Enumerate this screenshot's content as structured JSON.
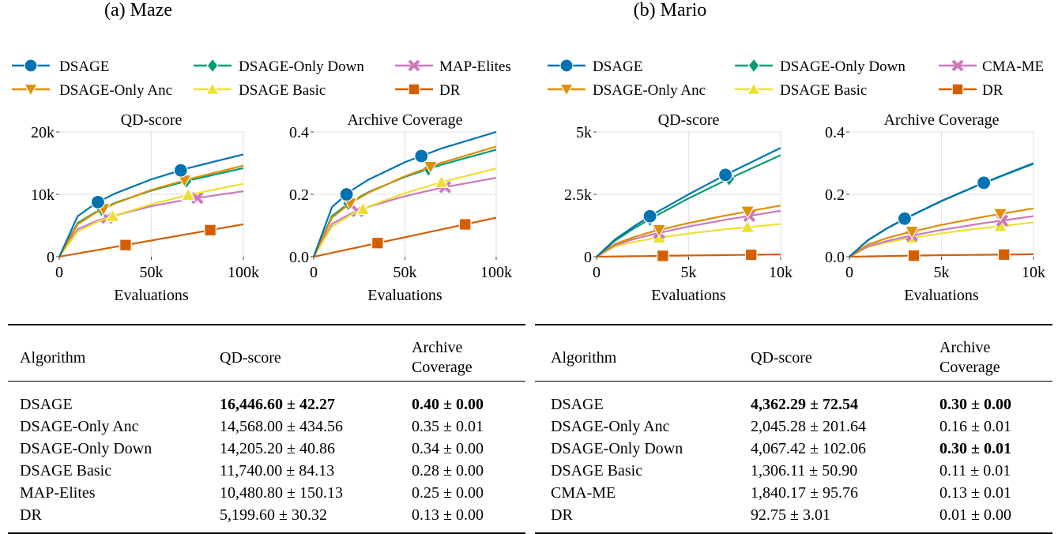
{
  "panels": [
    {
      "title": "(a) Maze",
      "legend": [
        {
          "name": "DSAGE",
          "color": "#0173b2",
          "marker": "circle"
        },
        {
          "name": "DSAGE-Only Down",
          "color": "#029e73",
          "marker": "diamond"
        },
        {
          "name": "MAP-Elites",
          "color": "#cc78bc",
          "marker": "x"
        },
        {
          "name": "DSAGE-Only Anc",
          "color": "#de8f05",
          "marker": "triangle-down"
        },
        {
          "name": "DSAGE Basic",
          "color": "#ece133",
          "marker": "triangle-up"
        },
        {
          "name": "DR",
          "color": "#d55e00",
          "marker": "square"
        }
      ],
      "table": {
        "headers": [
          "Algorithm",
          "QD-score",
          "Archive",
          "Coverage"
        ],
        "rows": [
          {
            "algorithm": "DSAGE",
            "qd": "16,446.60 ± 42.27",
            "qd_bold": true,
            "cov": "0.40 ± 0.00",
            "cov_bold": true
          },
          {
            "algorithm": "DSAGE-Only Anc",
            "qd": "14,568.00 ± 434.56",
            "qd_bold": false,
            "cov": "0.35 ± 0.01",
            "cov_bold": false
          },
          {
            "algorithm": "DSAGE-Only Down",
            "qd": "14,205.20 ± 40.86",
            "qd_bold": false,
            "cov": "0.34 ± 0.00",
            "cov_bold": false
          },
          {
            "algorithm": "DSAGE Basic",
            "qd": "11,740.00 ± 84.13",
            "qd_bold": false,
            "cov": "0.28 ± 0.00",
            "cov_bold": false
          },
          {
            "algorithm": "MAP-Elites",
            "qd": "10,480.80 ± 150.13",
            "qd_bold": false,
            "cov": "0.25 ± 0.00",
            "cov_bold": false
          },
          {
            "algorithm": "DR",
            "qd": "5,199.60 ± 30.32",
            "qd_bold": false,
            "cov": "0.13 ± 0.00",
            "cov_bold": false
          }
        ]
      }
    },
    {
      "title": "(b) Mario",
      "legend": [
        {
          "name": "DSAGE",
          "color": "#0173b2",
          "marker": "circle"
        },
        {
          "name": "DSAGE-Only Down",
          "color": "#029e73",
          "marker": "diamond"
        },
        {
          "name": "CMA-ME",
          "color": "#cc78bc",
          "marker": "x"
        },
        {
          "name": "DSAGE-Only Anc",
          "color": "#de8f05",
          "marker": "triangle-down"
        },
        {
          "name": "DSAGE Basic",
          "color": "#ece133",
          "marker": "triangle-up"
        },
        {
          "name": "DR",
          "color": "#d55e00",
          "marker": "square"
        }
      ],
      "table": {
        "headers": [
          "Algorithm",
          "QD-score",
          "Archive",
          "Coverage"
        ],
        "rows": [
          {
            "algorithm": "DSAGE",
            "qd": "4,362.29 ± 72.54",
            "qd_bold": true,
            "cov": "0.30 ± 0.00",
            "cov_bold": true
          },
          {
            "algorithm": "DSAGE-Only Anc",
            "qd": "2,045.28 ± 201.64",
            "qd_bold": false,
            "cov": "0.16 ± 0.01",
            "cov_bold": false
          },
          {
            "algorithm": "DSAGE-Only Down",
            "qd": "4,067.42 ± 102.06",
            "qd_bold": false,
            "cov": "0.30 ± 0.01",
            "cov_bold": true
          },
          {
            "algorithm": "DSAGE Basic",
            "qd": "1,306.11 ± 50.90",
            "qd_bold": false,
            "cov": "0.11 ± 0.01",
            "cov_bold": false
          },
          {
            "algorithm": "CMA-ME",
            "qd": "1,840.17 ± 95.76",
            "qd_bold": false,
            "cov": "0.13 ± 0.01",
            "cov_bold": false
          },
          {
            "algorithm": "DR",
            "qd": "92.75 ± 3.01",
            "qd_bold": false,
            "cov": "0.01 ± 0.00",
            "cov_bold": false
          }
        ]
      }
    }
  ],
  "chart_data": [
    {
      "type": "line",
      "title": "QD-score",
      "xlabel": "Evaluations",
      "ylabel": "",
      "xlim": [
        0,
        100000
      ],
      "ylim": [
        0,
        20000
      ],
      "grid": true,
      "xticks": [
        0,
        50000,
        100000
      ],
      "xticklabels": [
        "0",
        "50k",
        "100k"
      ],
      "yticks": [
        0,
        10000,
        20000
      ],
      "yticklabels": [
        "0",
        "10k",
        "20k"
      ],
      "x": [
        0,
        10000,
        20000,
        30000,
        50000,
        70000,
        100000
      ],
      "series": [
        {
          "name": "DSAGE",
          "color": "#0173b2",
          "marker": "circle",
          "values": [
            0,
            6500,
            8600,
            10100,
            12400,
            14200,
            16400
          ],
          "markers_at": [
            21000,
            66000
          ]
        },
        {
          "name": "DSAGE-Only Anc",
          "color": "#de8f05",
          "marker": "triangle-down",
          "values": [
            0,
            5200,
            7100,
            8500,
            10700,
            12400,
            14600
          ],
          "markers_at": [
            24000,
            68000
          ]
        },
        {
          "name": "DSAGE-Only Down",
          "color": "#029e73",
          "marker": "diamond",
          "values": [
            0,
            5400,
            7200,
            8600,
            10600,
            12200,
            14200
          ],
          "markers_at": [
            23000,
            69000
          ]
        },
        {
          "name": "DSAGE Basic",
          "color": "#ece133",
          "marker": "triangle-up",
          "values": [
            0,
            4000,
            5500,
            6600,
            8400,
            9900,
            11700
          ],
          "markers_at": [
            29000,
            70000
          ]
        },
        {
          "name": "MAP-Elites",
          "color": "#cc78bc",
          "marker": "x",
          "values": [
            0,
            4400,
            5700,
            6600,
            8100,
            9200,
            10500
          ],
          "markers_at": [
            26000,
            75000
          ]
        },
        {
          "name": "DR",
          "color": "#d55e00",
          "marker": "square",
          "values": [
            0,
            520,
            1040,
            1560,
            2600,
            3640,
            5200
          ],
          "markers_at": [
            36000,
            82000
          ]
        }
      ]
    },
    {
      "type": "line",
      "title": "Archive Coverage",
      "xlabel": "Evaluations",
      "ylabel": "",
      "xlim": [
        0,
        100000
      ],
      "ylim": [
        0,
        0.4
      ],
      "grid": true,
      "xticks": [
        0,
        50000,
        100000
      ],
      "xticklabels": [
        "0",
        "50k",
        "100k"
      ],
      "yticks": [
        0,
        0.2,
        0.4
      ],
      "yticklabels": [
        "0.0",
        "0.2",
        "0.4"
      ],
      "x": [
        0,
        10000,
        20000,
        30000,
        50000,
        70000,
        100000
      ],
      "series": [
        {
          "name": "DSAGE",
          "color": "#0173b2",
          "marker": "circle",
          "values": [
            0,
            0.159,
            0.21,
            0.247,
            0.303,
            0.347,
            0.4
          ],
          "markers_at": [
            18000,
            59000
          ]
        },
        {
          "name": "DSAGE-Only Anc",
          "color": "#de8f05",
          "marker": "triangle-down",
          "values": [
            0,
            0.125,
            0.171,
            0.205,
            0.258,
            0.301,
            0.353
          ],
          "markers_at": [
            20000,
            64000
          ]
        },
        {
          "name": "DSAGE-Only Down",
          "color": "#029e73",
          "marker": "diamond",
          "values": [
            0,
            0.13,
            0.175,
            0.207,
            0.256,
            0.295,
            0.343
          ],
          "markers_at": [
            19000,
            63000
          ]
        },
        {
          "name": "DSAGE Basic",
          "color": "#ece133",
          "marker": "triangle-up",
          "values": [
            0,
            0.096,
            0.133,
            0.161,
            0.204,
            0.239,
            0.283
          ],
          "markers_at": [
            27000,
            70000
          ]
        },
        {
          "name": "MAP-Elites",
          "color": "#cc78bc",
          "marker": "x",
          "values": [
            0,
            0.105,
            0.137,
            0.16,
            0.194,
            0.221,
            0.253
          ],
          "markers_at": [
            24000,
            72000
          ]
        },
        {
          "name": "DR",
          "color": "#d55e00",
          "marker": "square",
          "values": [
            0,
            0.0125,
            0.025,
            0.0375,
            0.0625,
            0.0875,
            0.125
          ],
          "markers_at": [
            35000,
            83000
          ]
        }
      ]
    },
    {
      "type": "line",
      "title": "QD-score",
      "xlabel": "Evaluations",
      "ylabel": "",
      "xlim": [
        0,
        10000
      ],
      "ylim": [
        0,
        5000
      ],
      "grid": true,
      "xticks": [
        0,
        5000,
        10000
      ],
      "xticklabels": [
        "0",
        "5k",
        "10k"
      ],
      "yticks": [
        0,
        2500,
        5000
      ],
      "yticklabels": [
        "0",
        "2.5k",
        "5k"
      ],
      "x": [
        0,
        1000,
        2000,
        3000,
        5000,
        7000,
        10000
      ],
      "series": [
        {
          "name": "DSAGE",
          "color": "#0173b2",
          "marker": "circle",
          "values": [
            0,
            690,
            1200,
            1670,
            2500,
            3280,
            4360
          ],
          "markers_at": [
            2900,
            7000
          ]
        },
        {
          "name": "DSAGE-Only Down",
          "color": "#029e73",
          "marker": "diamond",
          "values": [
            0,
            640,
            1120,
            1550,
            2340,
            3060,
            4070
          ],
          "markers_at": [
            2900,
            7200
          ]
        },
        {
          "name": "DSAGE-Only Anc",
          "color": "#de8f05",
          "marker": "triangle-down",
          "values": [
            0,
            510,
            780,
            1000,
            1350,
            1650,
            2050
          ],
          "markers_at": [
            3400,
            8200
          ]
        },
        {
          "name": "CMA-ME",
          "color": "#cc78bc",
          "marker": "x",
          "values": [
            0,
            460,
            700,
            890,
            1210,
            1480,
            1840
          ],
          "markers_at": [
            3400,
            8300
          ]
        },
        {
          "name": "DSAGE Basic",
          "color": "#ece133",
          "marker": "triangle-up",
          "values": [
            0,
            410,
            590,
            720,
            930,
            1100,
            1310
          ],
          "markers_at": [
            3400,
            8200
          ]
        },
        {
          "name": "DR",
          "color": "#d55e00",
          "marker": "square",
          "values": [
            0,
            10,
            20,
            30,
            50,
            65,
            93
          ],
          "markers_at": [
            3600,
            8400
          ]
        }
      ]
    },
    {
      "type": "line",
      "title": "Archive Coverage",
      "xlabel": "Evaluations",
      "ylabel": "",
      "xlim": [
        0,
        10000
      ],
      "ylim": [
        0,
        0.4
      ],
      "grid": true,
      "xticks": [
        0,
        5000,
        10000
      ],
      "xticklabels": [
        "0",
        "5k",
        "10k"
      ],
      "yticks": [
        0,
        0.2,
        0.4
      ],
      "yticklabels": [
        "0.0",
        "0.2",
        "0.4"
      ],
      "x": [
        0,
        1000,
        2000,
        3000,
        5000,
        7000,
        10000
      ],
      "series": [
        {
          "name": "DSAGE",
          "color": "#0173b2",
          "marker": "circle",
          "values": [
            0,
            0.053,
            0.09,
            0.122,
            0.179,
            0.23,
            0.3
          ],
          "markers_at": [
            3000,
            7300
          ]
        },
        {
          "name": "DSAGE-Only Down",
          "color": "#029e73",
          "marker": "diamond",
          "values": [
            0,
            0.052,
            0.089,
            0.121,
            0.178,
            0.229,
            0.298
          ],
          "markers_at": [
            3000,
            7300
          ]
        },
        {
          "name": "DSAGE-Only Anc",
          "color": "#de8f05",
          "marker": "triangle-down",
          "values": [
            0,
            0.039,
            0.059,
            0.075,
            0.102,
            0.125,
            0.155
          ],
          "markers_at": [
            3400,
            8200
          ]
        },
        {
          "name": "CMA-ME",
          "color": "#cc78bc",
          "marker": "x",
          "values": [
            0,
            0.033,
            0.05,
            0.063,
            0.086,
            0.105,
            0.13
          ],
          "markers_at": [
            3400,
            8300
          ]
        },
        {
          "name": "DSAGE Basic",
          "color": "#ece133",
          "marker": "triangle-up",
          "values": [
            0,
            0.031,
            0.045,
            0.057,
            0.075,
            0.09,
            0.11
          ],
          "markers_at": [
            3400,
            8200
          ]
        },
        {
          "name": "DR",
          "color": "#d55e00",
          "marker": "square",
          "values": [
            0,
            0.001,
            0.002,
            0.003,
            0.005,
            0.006,
            0.008
          ],
          "markers_at": [
            3500,
            8400
          ]
        }
      ]
    }
  ]
}
